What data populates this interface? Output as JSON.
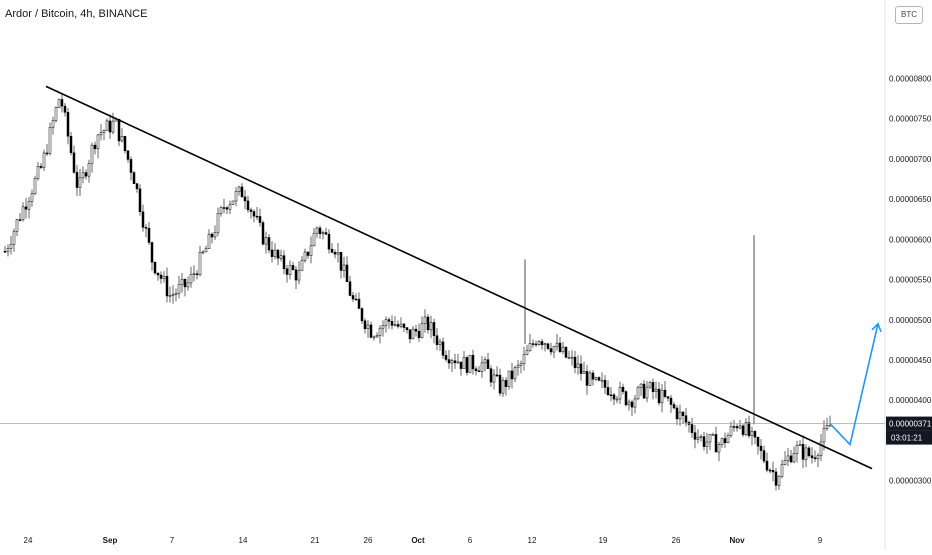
{
  "header": {
    "title": "Ardor / Bitcoin, 4h, BINANCE",
    "currency": "BTC"
  },
  "colors": {
    "background": "#ffffff",
    "candle": "#000000",
    "axis_text": "#131722",
    "price_line": "#9598a1",
    "trendline": "#000000",
    "projection": "#2196f3",
    "price_label_bg": "#131722",
    "price_label_text": "#ffffff"
  },
  "chart_data": {
    "type": "candlestick",
    "title": "Ardor / Bitcoin, 4h, BINANCE",
    "x_ticks": [
      "24",
      "Sep",
      "7",
      "14",
      "21",
      "26",
      "Oct",
      "6",
      "12",
      "19",
      "26",
      "Nov",
      "9"
    ],
    "y_ticks": [
      "0.00000800",
      "0.00000750",
      "0.00000700",
      "0.00000650",
      "0.00000600",
      "0.00000550",
      "0.00000500",
      "0.00000450",
      "0.00000400",
      "0.00000350",
      "0.00000300"
    ],
    "ylim": [
      2.45e-06,
      8.6e-06
    ],
    "last_price": "0.00000371",
    "countdown": "03:01:21",
    "series": [
      {
        "kind": "close-path",
        "points": [
          [
            "24",
            5.85e-06
          ],
          [
            "24",
            6.4e-06
          ],
          [
            "24",
            6.9e-06
          ],
          [
            "Sep",
            7.8e-06
          ],
          [
            "Sep",
            6.6e-06
          ],
          [
            "Sep",
            7.3e-06
          ],
          [
            "Sep",
            7.45e-06
          ],
          [
            "Sep",
            6.8e-06
          ],
          [
            "7",
            5.75e-06
          ],
          [
            "7",
            5.3e-06
          ],
          [
            "7",
            5.45e-06
          ],
          [
            "7",
            5.9e-06
          ],
          [
            "7",
            6.45e-06
          ],
          [
            "14",
            6.6e-06
          ],
          [
            "14",
            6.05e-06
          ],
          [
            "14",
            5.7e-06
          ],
          [
            "14",
            5.55e-06
          ],
          [
            "21",
            6.15e-06
          ],
          [
            "21",
            5.9e-06
          ],
          [
            "21",
            5.2e-06
          ],
          [
            "21",
            4.85e-06
          ],
          [
            "26",
            5e-06
          ],
          [
            "26",
            4.8e-06
          ],
          [
            "26",
            4.95e-06
          ],
          [
            "Oct",
            4.6e-06
          ],
          [
            "Oct",
            4.45e-06
          ],
          [
            "6",
            4.45e-06
          ],
          [
            "6",
            4.15e-06
          ],
          [
            "6",
            4.4e-06
          ],
          [
            "12",
            4.8e-06
          ],
          [
            "12",
            4.65e-06
          ],
          [
            "12",
            4.45e-06
          ],
          [
            "19",
            4.2e-06
          ],
          [
            "19",
            4.15e-06
          ],
          [
            "19",
            4e-06
          ],
          [
            "26",
            4.15e-06
          ],
          [
            "26",
            4e-06
          ],
          [
            "26",
            3.75e-06
          ],
          [
            "Nov",
            3.5e-06
          ],
          [
            "Nov",
            3.45e-06
          ],
          [
            "Nov",
            3.75e-06
          ],
          [
            "Nov",
            3.4e-06
          ],
          [
            "9",
            3.05e-06
          ],
          [
            "9",
            3.4e-06
          ],
          [
            "9",
            3.3e-06
          ],
          [
            "9",
            3.71e-06
          ]
        ]
      }
    ],
    "spikes": [
      {
        "x": "12",
        "high": 5.75e-06
      },
      {
        "x": "Nov",
        "high": 6.05e-06
      }
    ],
    "trendline": {
      "from": [
        "24",
        7.9e-06
      ],
      "to": [
        "9",
        3.15e-06
      ]
    },
    "projection": [
      [
        "9",
        3.71e-06
      ],
      [
        "9",
        3.45e-06
      ],
      [
        "9",
        4.95e-06
      ]
    ]
  }
}
